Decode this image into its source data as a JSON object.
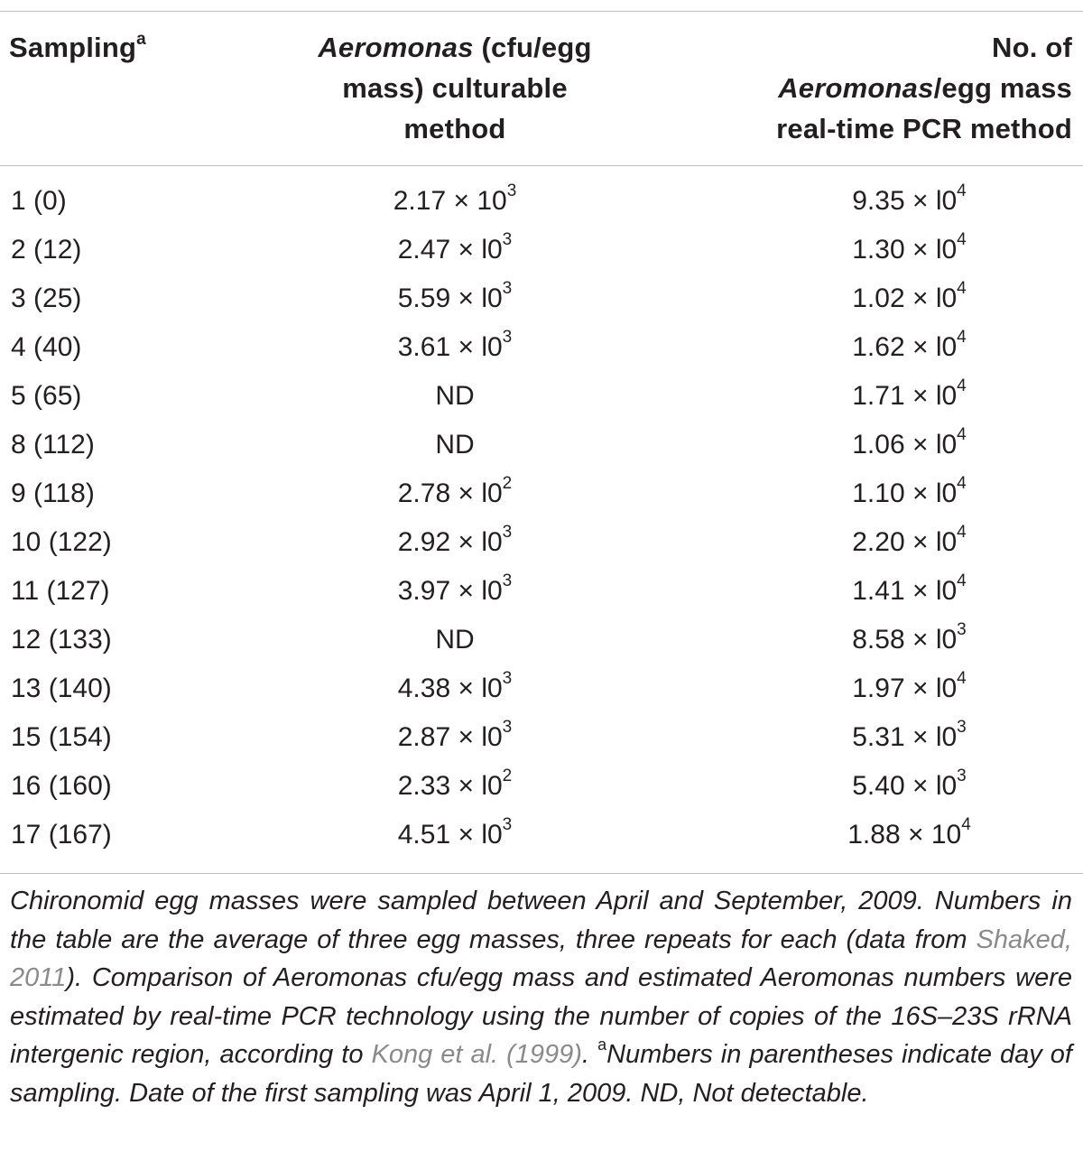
{
  "table": {
    "header": {
      "col1": "Sampling",
      "col1_sup": "a",
      "col2_line1_italic": "Aeromonas",
      "col2_line1_rest": " (cfu/egg",
      "col2_line2": "mass) culturable",
      "col2_line3": "method",
      "col3_line1": "No. of",
      "col3_line2_italic": "Aeromonas",
      "col3_line2_rest": "/egg mass",
      "col3_line3": "real-time PCR method"
    },
    "rows": [
      {
        "sampling": "1 (0)",
        "cult": "2.17 × 10",
        "cult_exp": "3",
        "pcr": "9.35 × l0",
        "pcr_exp": "4"
      },
      {
        "sampling": "2 (12)",
        "cult": "2.47 × l0",
        "cult_exp": "3",
        "pcr": "1.30 × l0",
        "pcr_exp": "4"
      },
      {
        "sampling": "3 (25)",
        "cult": "5.59 × l0",
        "cult_exp": "3",
        "pcr": "1.02 × l0",
        "pcr_exp": "4"
      },
      {
        "sampling": "4 (40)",
        "cult": "3.61 × l0",
        "cult_exp": "3",
        "pcr": "1.62 × l0",
        "pcr_exp": "4"
      },
      {
        "sampling": "5 (65)",
        "cult": "ND",
        "cult_exp": "",
        "pcr": "1.71 × l0",
        "pcr_exp": "4"
      },
      {
        "sampling": "8 (112)",
        "cult": "ND",
        "cult_exp": "",
        "pcr": "1.06 × l0",
        "pcr_exp": "4"
      },
      {
        "sampling": "9 (118)",
        "cult": "2.78 × l0",
        "cult_exp": "2",
        "pcr": "1.10 × l0",
        "pcr_exp": "4"
      },
      {
        "sampling": "10 (122)",
        "cult": "2.92 × l0",
        "cult_exp": "3",
        "pcr": "2.20 × l0",
        "pcr_exp": "4"
      },
      {
        "sampling": "11 (127)",
        "cult": "3.97 × l0",
        "cult_exp": "3",
        "pcr": "1.41 × l0",
        "pcr_exp": "4"
      },
      {
        "sampling": "12 (133)",
        "cult": "ND",
        "cult_exp": "",
        "pcr": "8.58 × l0",
        "pcr_exp": "3"
      },
      {
        "sampling": "13 (140)",
        "cult": "4.38 × l0",
        "cult_exp": "3",
        "pcr": "1.97 × l0",
        "pcr_exp": "4"
      },
      {
        "sampling": "15 (154)",
        "cult": "2.87 × l0",
        "cult_exp": "3",
        "pcr": "5.31 × l0",
        "pcr_exp": "3"
      },
      {
        "sampling": "16 (160)",
        "cult": "2.33 × l0",
        "cult_exp": "2",
        "pcr": "5.40 × l0",
        "pcr_exp": "3"
      },
      {
        "sampling": "17 (167)",
        "cult": "4.51 × l0",
        "cult_exp": "3",
        "pcr": "1.88 × 10",
        "pcr_exp": "4"
      }
    ]
  },
  "footnote": {
    "part1": "Chironomid egg masses were sampled between April and September, 2009. Numbers in the table are the average of three egg masses, three repeats for each (data from ",
    "cite1": "Shaked, 2011",
    "part2": "). Comparison of Aeromonas cfu/egg mass and estimated Aeromonas numbers were estimated by real-time PCR technology using the number of copies of the 16S–23S rRNA intergenic region, according to ",
    "cite2": "Kong et al. (1999)",
    "part3": ". ",
    "sup": "a",
    "part4": "Numbers in parentheses indicate day of sampling. Date of the first sampling was April 1, 2009. ND, Not detectable."
  }
}
